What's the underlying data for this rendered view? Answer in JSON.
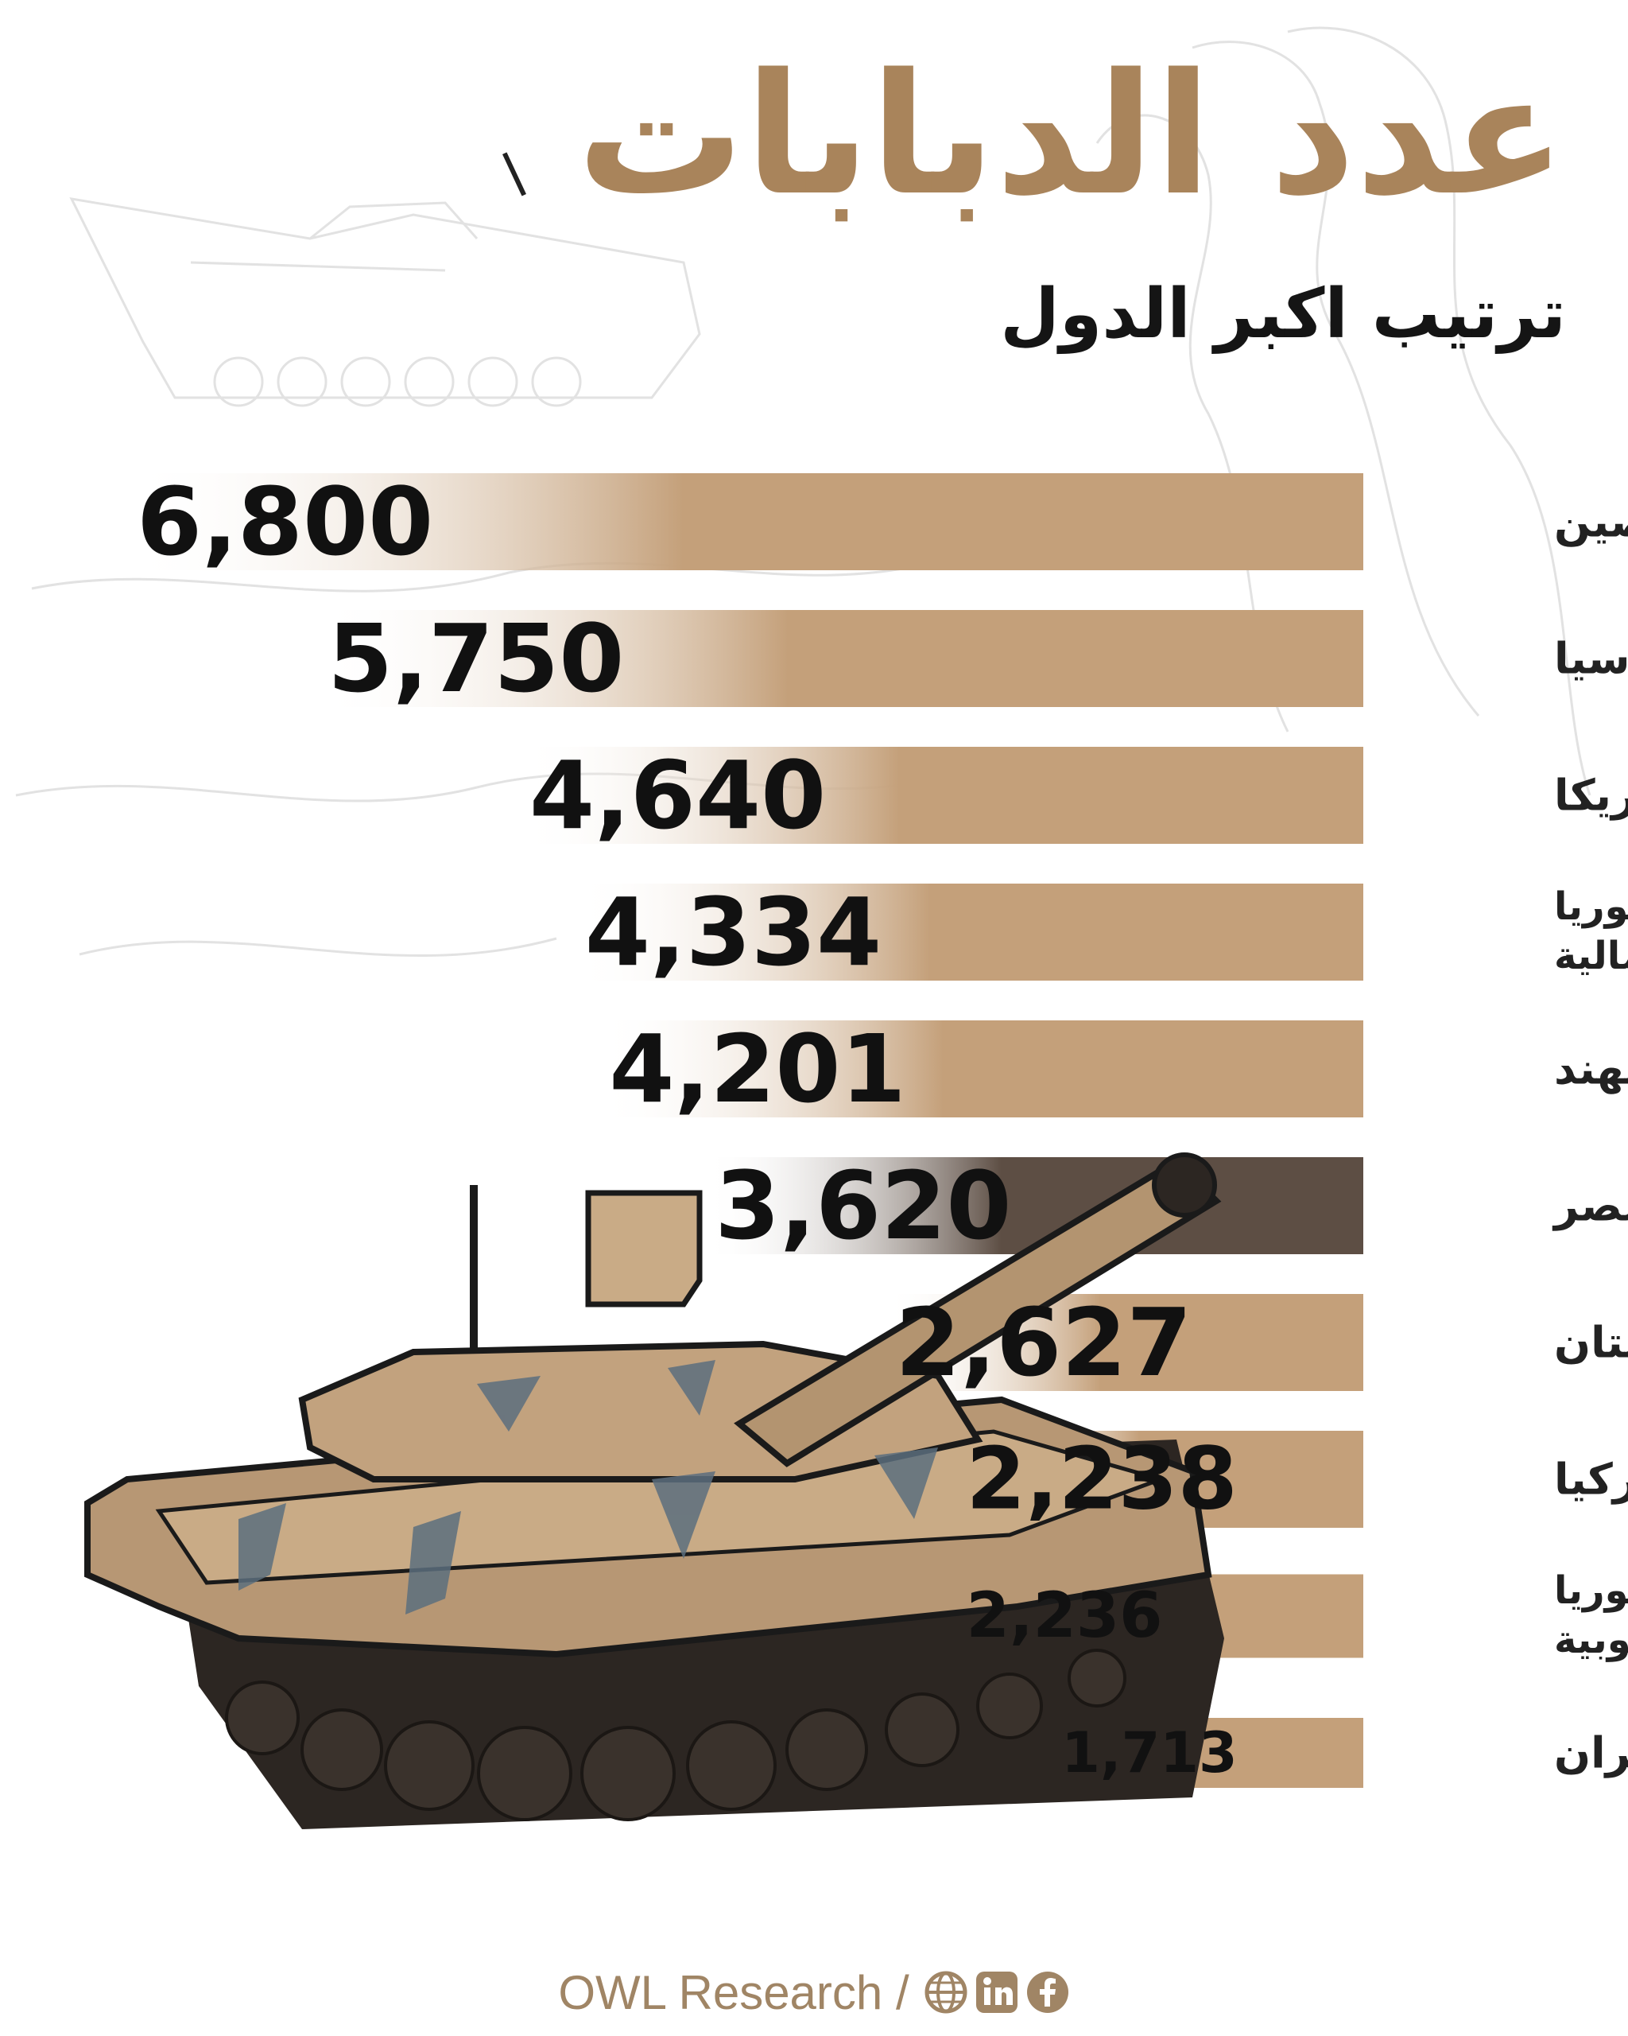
{
  "header": {
    "title": "عدد الدبابات",
    "subtitle": "ترتيب اكبر الدول"
  },
  "chart_data": {
    "type": "bar",
    "orientation": "horizontal",
    "categories": [
      "الصين",
      "روسيا",
      "امريكا",
      "كوريا الشمالية",
      "الهند",
      "مصر",
      "باكستان",
      "تركيا",
      "كوريا الجنوبية",
      "ايران"
    ],
    "values": [
      6800,
      5750,
      4640,
      4334,
      4201,
      3620,
      2627,
      2238,
      2236,
      1713
    ],
    "value_labels": [
      "6,800",
      "5,750",
      "4,640",
      "4,334",
      "4,201",
      "3,620",
      "2,627",
      "2,238",
      "2,236",
      "1,713"
    ],
    "highlight_category": "مصر",
    "colors": {
      "bar": "#c4a07a",
      "bar_fade": "#ffffff",
      "highlight": "#5d4e44",
      "value_text": "#111111",
      "category_text": "#222222"
    },
    "grid": false,
    "legend": "none"
  },
  "footer": {
    "credit": "OWL Research /",
    "icons": [
      "globe-icon",
      "linkedin-icon",
      "facebook-icon"
    ]
  }
}
